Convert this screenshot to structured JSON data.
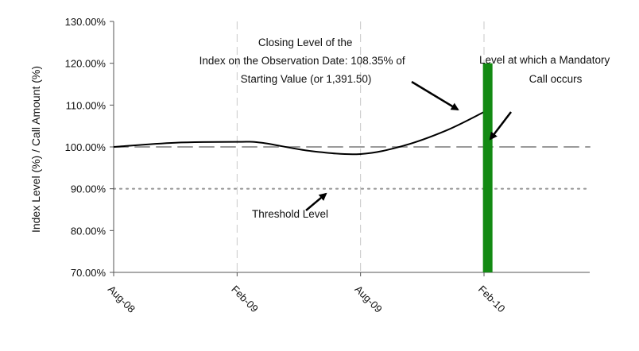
{
  "chart_data": {
    "type": "line",
    "title": "",
    "xlabel": "",
    "ylabel": "Index Level (%) / Call Amount (%)",
    "x_ticks": [
      "Aug-08",
      "Feb-09",
      "Aug-09",
      "Feb-10"
    ],
    "y_ticks": [
      "70.00%",
      "80.00%",
      "90.00%",
      "100.00%",
      "110.00%",
      "120.00%",
      "130.00%"
    ],
    "ylim": [
      70,
      130
    ],
    "grid": "vertical dashed lines at each x tick",
    "series": [
      {
        "style": "solid black line",
        "x": [
          0,
          0.5,
          1,
          1.2,
          1.6,
          2,
          2.35,
          2.7,
          3
        ],
        "y": [
          100,
          101,
          101.2,
          101,
          99,
          98.3,
          100.3,
          104,
          108.35
        ]
      }
    ],
    "reference_lines": [
      {
        "y": 100,
        "style": "long dashed gray"
      },
      {
        "y": 90,
        "style": "dotted gray"
      }
    ],
    "bars": [
      {
        "x": 3.03,
        "from": 70,
        "to": 120,
        "color": "#138a13"
      }
    ],
    "annotations": [
      {
        "lines": [
          "Closing Level of the",
          "Index on the Observation Date: 108.35% of",
          "Starting Value (or 1,391.50)"
        ]
      },
      {
        "lines": [
          "Level at which a Mandatory",
          "Call occurs"
        ]
      },
      {
        "lines": [
          "Threshold Level"
        ]
      }
    ],
    "colors": {
      "line": "#000000",
      "axis": "#555555",
      "grid": "#c8c8c8",
      "reference": "#9a9a9a",
      "bar": "#138a13"
    }
  }
}
